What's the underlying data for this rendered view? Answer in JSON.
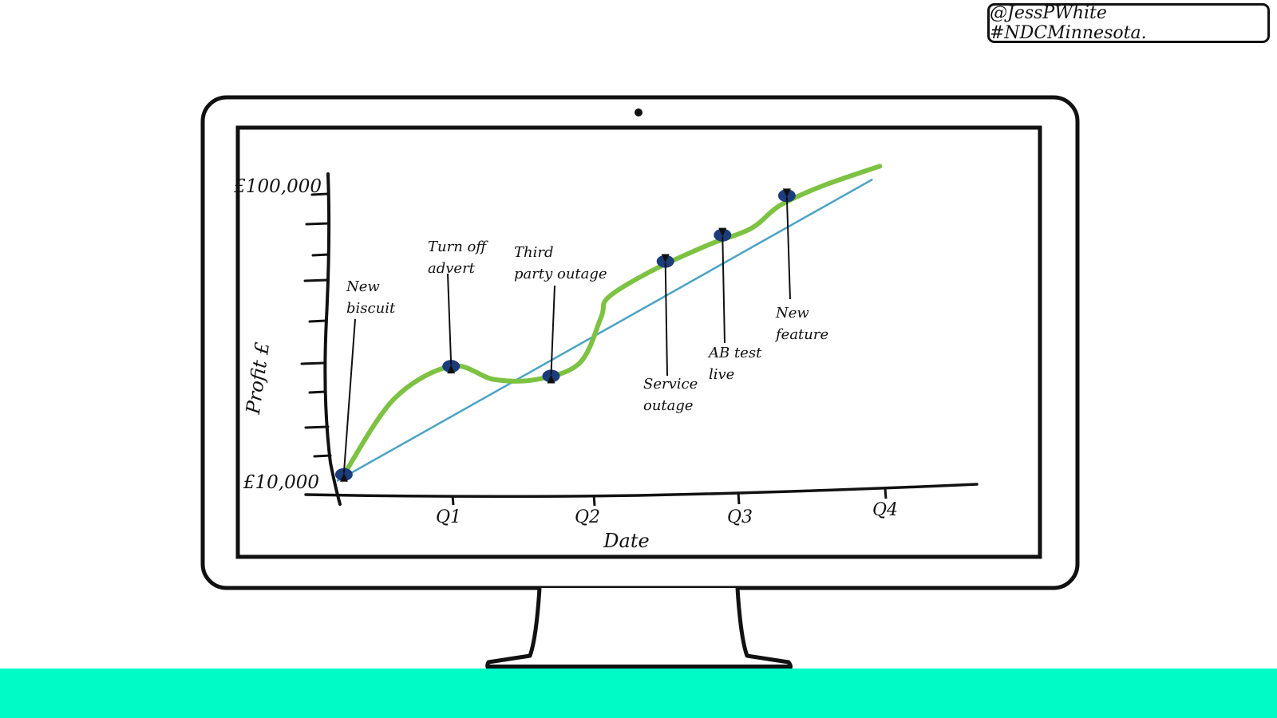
{
  "header": {
    "handle_text": "@JessPWhite #NDCMinnesota."
  },
  "colors": {
    "floor_band": "#00FCC6",
    "profit_line": "#7DC242",
    "trend_line": "#4BA3C3",
    "event_marker": "#1D3C7C",
    "ink": "#111111"
  },
  "chart_data": {
    "type": "line",
    "xlabel": "Date",
    "ylabel": "Profit £",
    "x_tick_labels": [
      "Q1",
      "Q2",
      "Q3",
      "Q4"
    ],
    "y_tick_labels": [
      "£100,000",
      "£10,000"
    ],
    "ylim": [
      10000,
      100000
    ],
    "xlim": [
      0,
      4.3
    ],
    "grid": false,
    "series": [
      {
        "x": [
          0.05,
          0.4,
          0.8,
          1.1,
          1.4,
          1.7,
          1.85,
          1.9,
          2.2,
          2.6,
          2.9,
          3.1,
          3.4,
          3.8
        ],
        "y": [
          12000,
          35000,
          45000,
          41000,
          41000,
          46000,
          60000,
          66000,
          74000,
          82000,
          87000,
          94000,
          100000,
          106000
        ]
      },
      {
        "x": [
          0,
          3.75
        ],
        "y": [
          10000,
          102000
        ]
      }
    ],
    "annotations": [
      {
        "label": [
          "New",
          "biscuit"
        ],
        "x": 0.05,
        "y": 12000
      },
      {
        "label": [
          "Turn off",
          "advert"
        ],
        "x": 0.8,
        "y": 45000
      },
      {
        "label": [
          "Third",
          "party outage"
        ],
        "x": 1.5,
        "y": 42000
      },
      {
        "label": [
          "Service",
          "outage"
        ],
        "x": 2.3,
        "y": 77000
      },
      {
        "label": [
          "AB test",
          "live"
        ],
        "x": 2.7,
        "y": 85000
      },
      {
        "label": [
          "New",
          "feature"
        ],
        "x": 3.15,
        "y": 97000
      }
    ]
  }
}
